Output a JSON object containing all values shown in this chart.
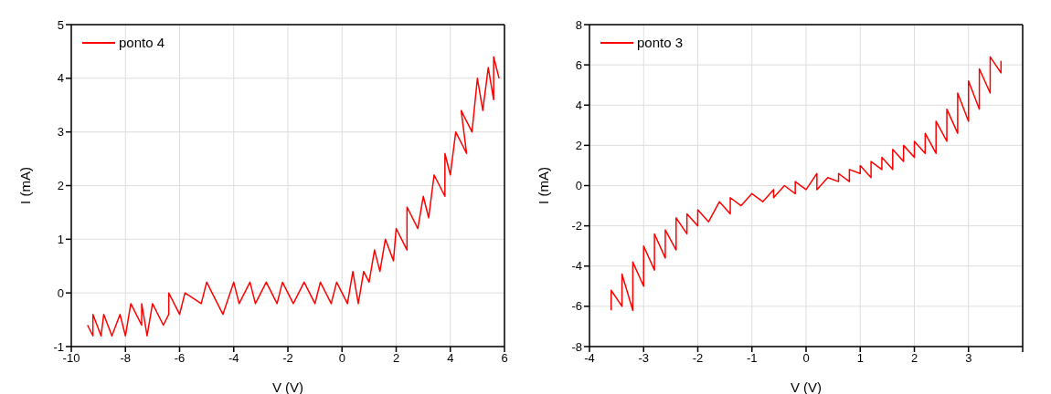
{
  "chart_data": [
    {
      "type": "line",
      "xlabel": "V (V)",
      "ylabel": "I (mA)",
      "xlim": [
        -10,
        6
      ],
      "xticks": [
        -10,
        -8,
        -6,
        -4,
        -2,
        0,
        2,
        4,
        6
      ],
      "ylim": [
        -1,
        5
      ],
      "yticks": [
        -1,
        0,
        1,
        2,
        3,
        4,
        5
      ],
      "grid": true,
      "legend": "top left",
      "series": [
        {
          "name": "ponto 4",
          "color": "#ff0000",
          "x": [
            -9.4,
            -9.2,
            -9.2,
            -8.9,
            -8.8,
            -8.5,
            -8.2,
            -8,
            -7.8,
            -7.4,
            -7.4,
            -7.2,
            -7,
            -6.6,
            -6.4,
            -6.4,
            -6,
            -5.8,
            -5.2,
            -5,
            -4.6,
            -4.4,
            -4,
            -3.8,
            -3.4,
            -3.2,
            -2.8,
            -2.4,
            -2.2,
            -1.8,
            -1.4,
            -1,
            -0.8,
            -0.4,
            -0.2,
            0.2,
            0.4,
            0.6,
            0.8,
            1,
            1.2,
            1.4,
            1.6,
            1.9,
            2,
            2.4,
            2.4,
            2.8,
            3,
            3.2,
            3.4,
            3.8,
            3.8,
            4,
            4.2,
            4.6,
            4.4,
            4.8,
            5,
            5.2,
            5.4,
            5.6,
            5.6,
            5.8
          ],
          "values": [
            -0.6,
            -0.8,
            -0.4,
            -0.8,
            -0.4,
            -0.8,
            -0.4,
            -0.8,
            -0.2,
            -0.6,
            -0.2,
            -0.8,
            -0.2,
            -0.6,
            -0.4,
            0,
            -0.4,
            0,
            -0.2,
            0.2,
            -0.2,
            -0.4,
            0.2,
            -0.2,
            0.2,
            -0.2,
            0.2,
            -0.2,
            0.2,
            -0.2,
            0.2,
            -0.2,
            0.2,
            -0.2,
            0.2,
            -0.2,
            0.4,
            -0.2,
            0.4,
            0.2,
            0.8,
            0.4,
            1,
            0.6,
            1.2,
            0.8,
            1.6,
            1.2,
            1.8,
            1.4,
            2.2,
            1.8,
            2.6,
            2.2,
            3,
            2.6,
            3.4,
            3,
            4,
            3.4,
            4.2,
            3.6,
            4.4,
            4
          ]
        }
      ]
    },
    {
      "type": "line",
      "xlabel": "V (V)",
      "ylabel": "I (mA)",
      "xlim": [
        -4,
        4
      ],
      "xticks": [
        -4,
        -3,
        -2,
        -1,
        0,
        1,
        2,
        3,
        {
          "value": 4,
          "label": null
        }
      ],
      "ylim": [
        -8,
        8
      ],
      "yticks": [
        -8,
        -6,
        -4,
        -2,
        0,
        2,
        4,
        6,
        8
      ],
      "grid": true,
      "legend": "top left",
      "series": [
        {
          "name": "ponto 3",
          "color": "#ff0000",
          "x": [
            -3.6,
            -3.6,
            -3.4,
            -3.4,
            -3.2,
            -3.2,
            -3,
            -3,
            -2.8,
            -2.8,
            -2.6,
            -2.6,
            -2.4,
            -2.4,
            -2.2,
            -2.2,
            -2,
            -2,
            -1.8,
            -1.6,
            -1.4,
            -1.4,
            -1.2,
            -1,
            -0.8,
            -0.6,
            -0.6,
            -0.4,
            -0.2,
            -0.2,
            0,
            0.2,
            0.2,
            0.4,
            0.6,
            0.6,
            0.8,
            0.8,
            1,
            1,
            1.2,
            1.2,
            1.4,
            1.4,
            1.6,
            1.6,
            1.8,
            1.8,
            2,
            2,
            2.2,
            2.2,
            2.4,
            2.4,
            2.6,
            2.6,
            2.8,
            2.8,
            3,
            3,
            3.2,
            3.2,
            3.4,
            3.4,
            3.6,
            3.6
          ],
          "values": [
            -6.2,
            -5.2,
            -6,
            -4.4,
            -6.2,
            -3.8,
            -5,
            -3,
            -4.2,
            -2.4,
            -3.6,
            -2.2,
            -3.2,
            -1.6,
            -2.4,
            -1.4,
            -2,
            -1.2,
            -1.8,
            -0.8,
            -1.4,
            -0.6,
            -1,
            -0.4,
            -0.8,
            -0.2,
            -0.6,
            0,
            -0.4,
            0.2,
            -0.2,
            0.6,
            -0.2,
            0.4,
            0.2,
            0.6,
            0.2,
            0.8,
            0.6,
            1,
            0.4,
            1.2,
            0.8,
            1.4,
            0.8,
            1.8,
            1.2,
            2,
            1.4,
            2.2,
            1.6,
            2.6,
            1.6,
            3.2,
            2.2,
            3.8,
            2.6,
            4.6,
            3.2,
            5.2,
            3.8,
            5.8,
            4.6,
            6.4,
            5.6,
            6.2
          ]
        }
      ]
    }
  ]
}
